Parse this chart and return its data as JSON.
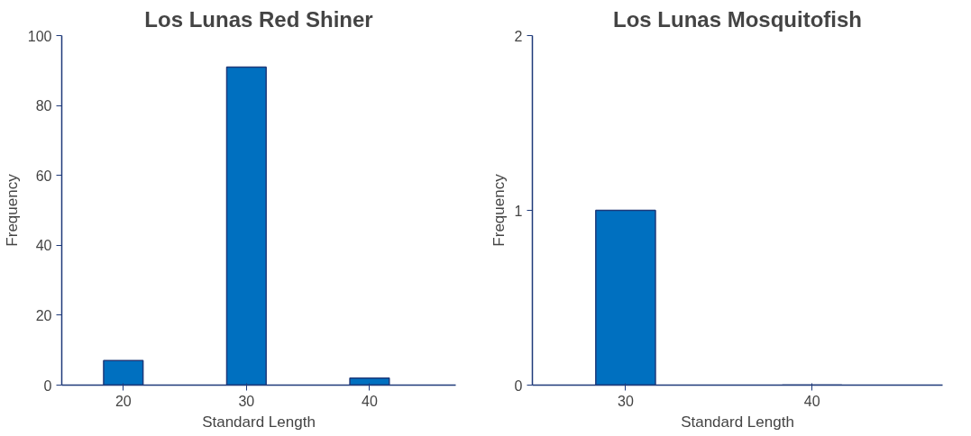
{
  "chart_data": [
    {
      "type": "bar",
      "title": "Los Lunas Red Shiner",
      "xlabel": "Standard Length",
      "ylabel": "Frequency",
      "categories": [
        "20",
        "30",
        "40"
      ],
      "values": [
        7,
        91,
        2
      ],
      "color": "#0070c0",
      "ylim": [
        0,
        100
      ],
      "yticks": [
        0,
        20,
        40,
        60,
        80,
        100
      ],
      "grid": false
    },
    {
      "type": "bar",
      "title": "Los Lunas Mosquitofish",
      "xlabel": "Standard Length",
      "ylabel": "Frequency",
      "categories": [
        "30",
        "40"
      ],
      "values": [
        1,
        0
      ],
      "color": "#0070c0",
      "ylim": [
        0,
        2
      ],
      "yticks": [
        0,
        1,
        2
      ],
      "grid": false
    }
  ]
}
